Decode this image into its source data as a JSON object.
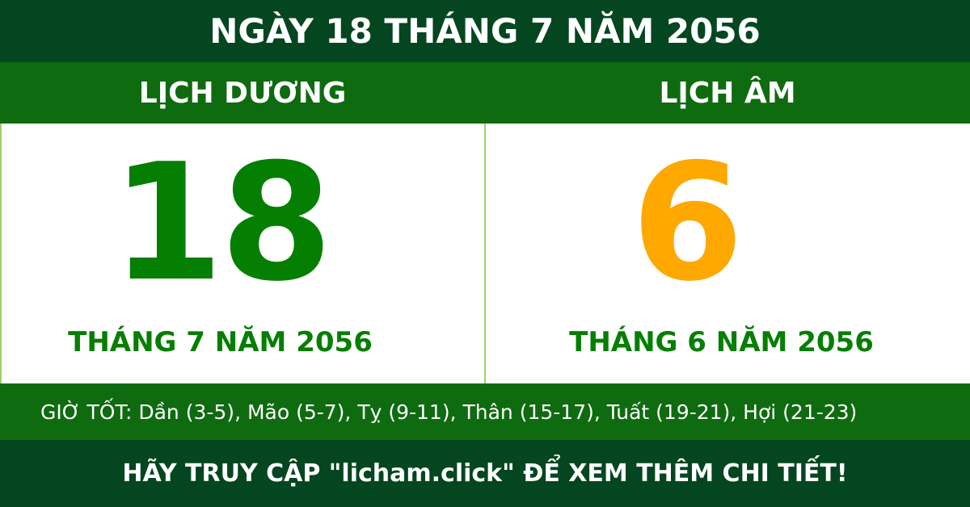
{
  "title": "NGÀY 18 THÁNG 7 NĂM 2056",
  "solar": {
    "heading": "LỊCH DƯƠNG",
    "day": "18",
    "month_year": "THÁNG 7 NĂM 2056"
  },
  "lunar": {
    "heading": "LỊCH ÂM",
    "day": "6",
    "month_year": "THÁNG 6 NĂM 2056"
  },
  "good_hours": "GIỜ TỐT: Dần (3-5), Mão (5-7), Tỵ (9-11), Thân (15-17), Tuất (19-21), Hợi (21-23)",
  "footer": "HÃY TRUY CẬP \"licham.click\" ĐỂ XEM THÊM CHI TIẾT!",
  "colors": {
    "dark_green": "#034620",
    "green": "#0f6b10",
    "solar_day": "#057f02",
    "lunar_day": "#ffa800"
  }
}
